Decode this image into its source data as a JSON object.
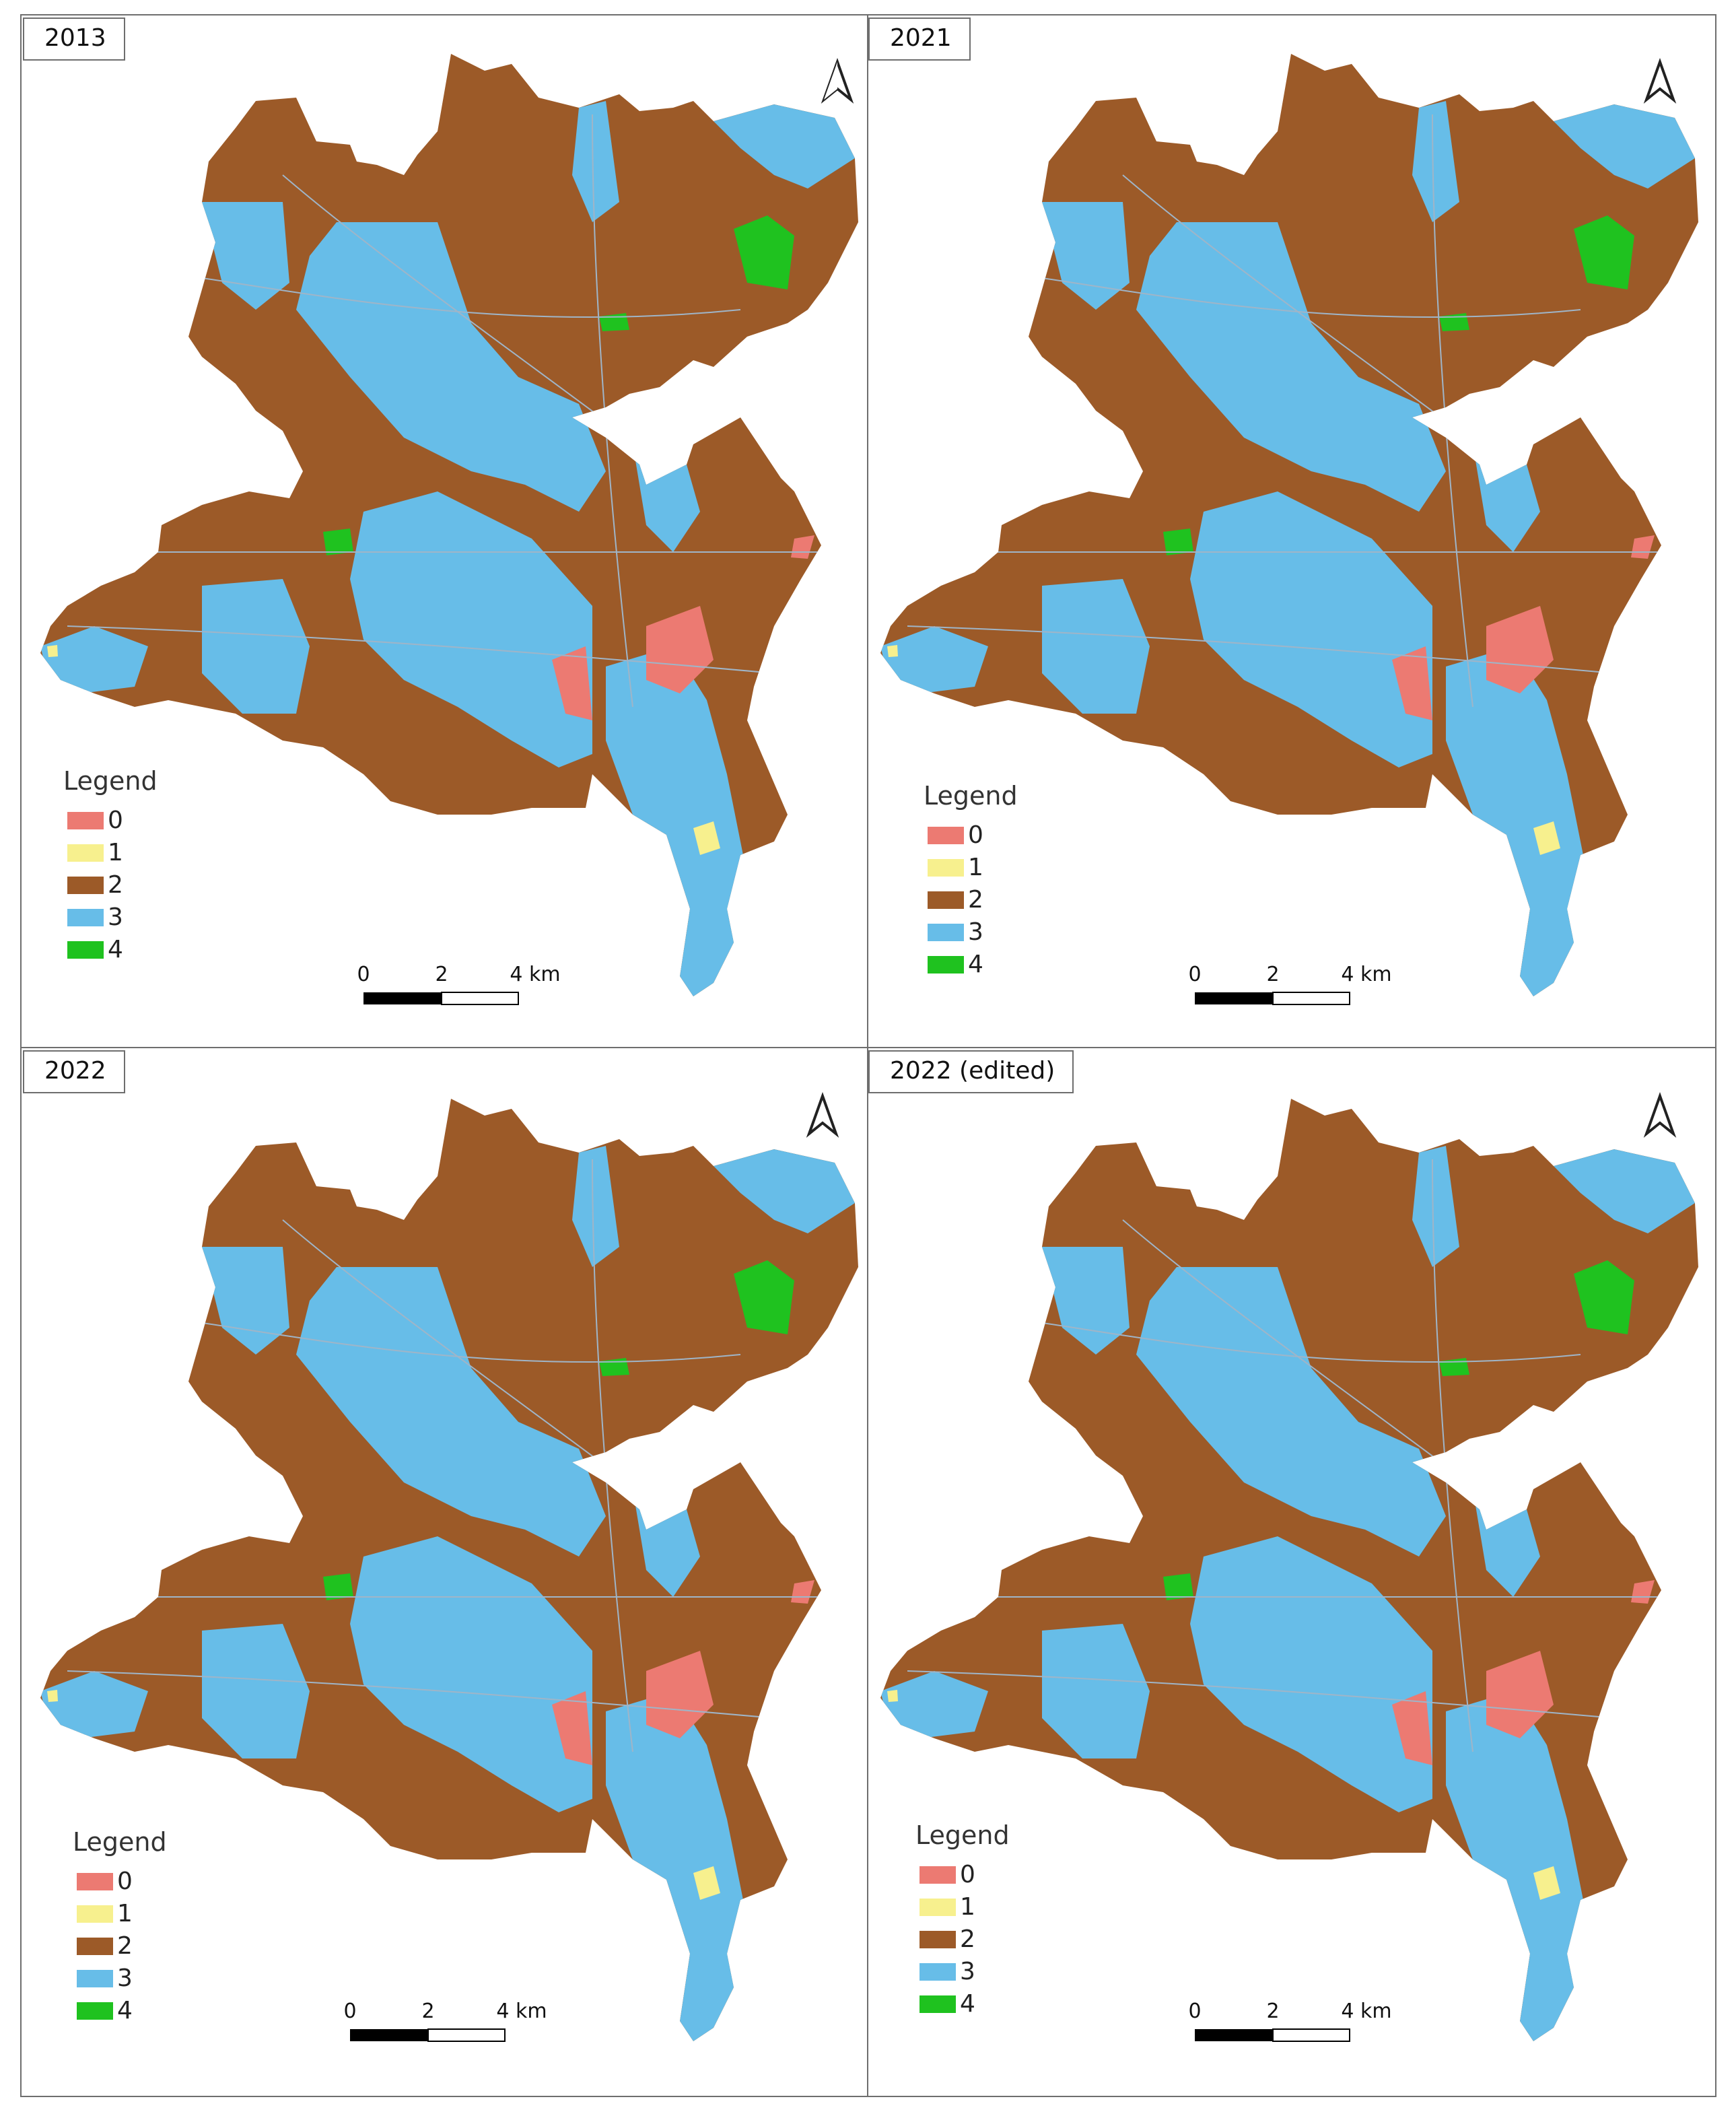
{
  "colors": {
    "class_0": "#ec7a72",
    "class_1": "#f7f08e",
    "class_2": "#9c5a28",
    "class_3": "#67bde8",
    "class_4": "#1fc21f",
    "frame": "#6e6e6e",
    "roads": "#9fb5c8"
  },
  "north_arrow_icon": "north-arrow-icon",
  "legend": {
    "title": "Legend",
    "classes": [
      "0",
      "1",
      "2",
      "3",
      "4"
    ]
  },
  "scale_bar": {
    "labels": [
      "0",
      "2",
      "4 km"
    ]
  },
  "panels": [
    {
      "title": "2013"
    },
    {
      "title": "2021"
    },
    {
      "title": "2022"
    },
    {
      "title": "2022 (edited)"
    }
  ]
}
